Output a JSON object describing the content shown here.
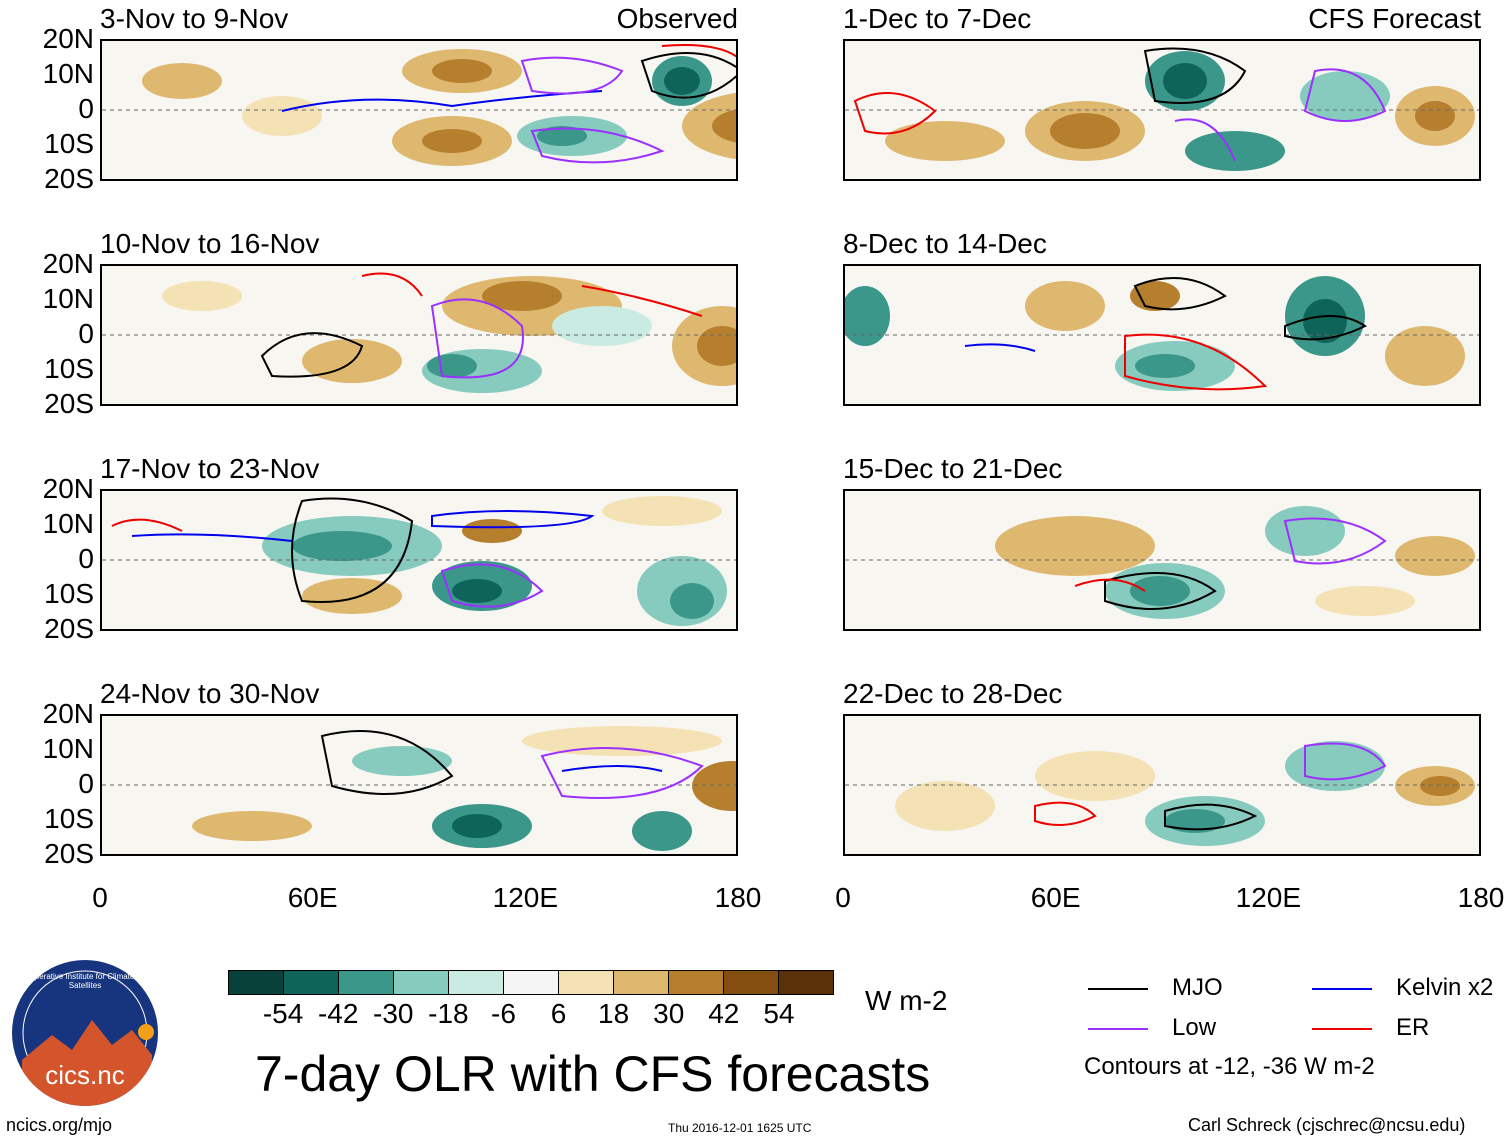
{
  "observed_label": "Observed",
  "forecast_label": "CFS Forecast",
  "panels_left": [
    {
      "title": "3-Nov to 9-Nov"
    },
    {
      "title": "10-Nov to 16-Nov"
    },
    {
      "title": "17-Nov to 23-Nov"
    },
    {
      "title": "24-Nov to 30-Nov"
    }
  ],
  "panels_right": [
    {
      "title": "1-Dec to 7-Dec"
    },
    {
      "title": "8-Dec to 14-Dec"
    },
    {
      "title": "15-Dec to 21-Dec"
    },
    {
      "title": "22-Dec to 28-Dec"
    }
  ],
  "chart_data": {
    "type": "heatmap",
    "title": "7-day OLR with CFS forecasts",
    "y_ticks": [
      "20N",
      "10N",
      "0",
      "10S",
      "20S"
    ],
    "x_ticks": [
      "0",
      "60E",
      "120E",
      "180"
    ],
    "colorbar": {
      "units": "W m-2",
      "ticks": [
        "-54",
        "-42",
        "-30",
        "-18",
        "-6",
        "6",
        "18",
        "30",
        "42",
        "54"
      ],
      "colors": [
        "#06413a",
        "#0e6459",
        "#3a978a",
        "#86cbbd",
        "#c9ebe2",
        "#f5f5f5",
        "#f4e2b4",
        "#deb86f",
        "#b57f2d",
        "#844e10",
        "#5a3108"
      ]
    },
    "legend": [
      {
        "name": "MJO",
        "color": "#000000"
      },
      {
        "name": "Kelvin x2",
        "color": "#0000ee"
      },
      {
        "name": "Low",
        "color": "#9b30ff"
      },
      {
        "name": "ER",
        "color": "#ee0000"
      }
    ],
    "contour_note": "Contours at -12, -36 W m-2"
  },
  "footer": {
    "logo_text": "cics.nc",
    "logo_ring": "Cooperative Institute for Climate and Satellites",
    "left": "ncics.org/mjo",
    "center": "Thu 2016-12-01 1625 UTC",
    "right": "Carl Schreck (cjschrec@ncsu.edu)"
  }
}
